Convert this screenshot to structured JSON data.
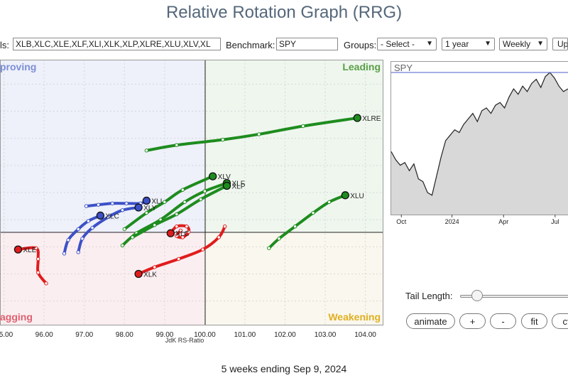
{
  "title": "Relative Rotation Graph (RRG)",
  "controls": {
    "symbols_label_partial": "ls:",
    "symbols_value": "XLB,XLC,XLE,XLF,XLI,XLK,XLP,XLRE,XLU,XLV,XL",
    "benchmark_label": "Benchmark:",
    "benchmark_value": "SPY",
    "groups_label": "Groups:",
    "groups_value": "- Select -",
    "period_value": "1 year",
    "frequency_value": "Weekly",
    "update_button_partial": "Up"
  },
  "chart_data": [
    {
      "type": "scatter",
      "name": "rrg",
      "xlabel": "JdK RS-Ratio",
      "ylabel": "",
      "xlim": [
        94.9,
        104.45
      ],
      "ylim": [
        95.1,
        104.9
      ],
      "x_ticks": [
        "95.00",
        "96.00",
        "97.00",
        "98.00",
        "99.00",
        "100.00",
        "101.00",
        "102.00",
        "103.00",
        "104.00"
      ],
      "quadrants": [
        {
          "label": "Improving",
          "label_partial": "proving",
          "color": "#7b8fd6"
        },
        {
          "label": "Leading",
          "color": "#5aa046"
        },
        {
          "label": "Weakening",
          "color": "#e0b020"
        },
        {
          "label": "Lagging",
          "label_partial": "agging",
          "color": "#e06070"
        }
      ],
      "series": [
        {
          "name": "XLRE",
          "label": "XLRE",
          "color": "#1e8c1e",
          "points": [
            [
              98.55,
              101.55
            ],
            [
              99.3,
              101.75
            ],
            [
              100.45,
              101.95
            ],
            [
              101.35,
              102.15
            ],
            [
              102.45,
              102.45
            ],
            [
              103.8,
              102.75
            ]
          ]
        },
        {
          "name": "XLV",
          "label": "XLV",
          "color": "#1e8c1e",
          "points": [
            [
              98.0,
              98.65
            ],
            [
              98.55,
              99.25
            ],
            [
              99.0,
              99.65
            ],
            [
              99.45,
              100.1
            ],
            [
              100.2,
              100.6
            ]
          ]
        },
        {
          "name": "XLF",
          "label": "XLF",
          "color": "#1e8c1e",
          "points": [
            [
              97.95,
              98.05
            ],
            [
              98.3,
              98.5
            ],
            [
              98.9,
              99.0
            ],
            [
              99.5,
              99.65
            ],
            [
              100.0,
              100.05
            ],
            [
              100.55,
              100.35
            ]
          ]
        },
        {
          "name": "XLP",
          "label": "XLP",
          "color": "#1e8c1e",
          "points": [
            [
              98.2,
              98.35
            ],
            [
              98.75,
              98.8
            ],
            [
              99.3,
              99.2
            ],
            [
              99.9,
              99.75
            ],
            [
              100.55,
              100.25
            ]
          ]
        },
        {
          "name": "XLU",
          "label": "XLU",
          "color": "#1e8c1e",
          "points": [
            [
              101.6,
              97.95
            ],
            [
              101.85,
              98.3
            ],
            [
              102.25,
              98.75
            ],
            [
              102.7,
              99.25
            ],
            [
              103.1,
              99.65
            ],
            [
              103.5,
              99.9
            ]
          ]
        },
        {
          "name": "XLI",
          "label": "XLI",
          "color": "#3c50c8",
          "points": [
            [
              97.05,
              99.5
            ],
            [
              97.35,
              99.55
            ],
            [
              97.7,
              99.6
            ],
            [
              98.05,
              99.6
            ],
            [
              98.4,
              99.6
            ],
            [
              98.55,
              99.7
            ]
          ]
        },
        {
          "name": "XLY",
          "label": "XLY",
          "color": "#3c50c8",
          "points": [
            [
              96.85,
              97.8
            ],
            [
              96.95,
              98.3
            ],
            [
              97.2,
              98.7
            ],
            [
              97.6,
              99.1
            ],
            [
              97.95,
              99.35
            ],
            [
              98.35,
              99.45
            ]
          ]
        },
        {
          "name": "XLC",
          "label": "XLC",
          "color": "#3c50c8",
          "points": [
            [
              96.5,
              97.75
            ],
            [
              96.6,
              98.25
            ],
            [
              96.85,
              98.65
            ],
            [
              97.1,
              98.95
            ],
            [
              97.4,
              99.15
            ]
          ]
        },
        {
          "name": "XLE",
          "label": "XLE",
          "color": "#e01c1c",
          "points": [
            [
              96.05,
              96.65
            ],
            [
              95.85,
              97.05
            ],
            [
              95.85,
              97.55
            ],
            [
              95.8,
              97.95
            ],
            [
              95.35,
              97.9
            ]
          ]
        },
        {
          "name": "XLK",
          "label": "XLK",
          "color": "#e01c1c",
          "points": [
            [
              100.5,
              98.75
            ],
            [
              100.35,
              98.35
            ],
            [
              99.95,
              97.9
            ],
            [
              99.35,
              97.55
            ],
            [
              98.75,
              97.25
            ],
            [
              98.35,
              97.0
            ]
          ]
        },
        {
          "name": "XLC",
          "label": "XLC",
          "color": "#e01c1c",
          "points": [
            [
              99.4,
              98.6
            ],
            [
              99.3,
              98.4
            ],
            [
              99.45,
              98.35
            ],
            [
              99.6,
              98.55
            ],
            [
              99.55,
              98.75
            ],
            [
              99.3,
              98.75
            ],
            [
              99.15,
              98.5
            ]
          ]
        }
      ]
    },
    {
      "type": "area",
      "name": "benchmark-price",
      "legend": "SPY",
      "x_ticks": [
        "Oct",
        "2024",
        "Apr",
        "Jul"
      ],
      "y_values": [
        0.42,
        0.36,
        0.32,
        0.34,
        0.28,
        0.33,
        0.22,
        0.2,
        0.12,
        0.1,
        0.24,
        0.38,
        0.5,
        0.54,
        0.58,
        0.56,
        0.62,
        0.66,
        0.7,
        0.64,
        0.72,
        0.74,
        0.7,
        0.76,
        0.78,
        0.74,
        0.82,
        0.88,
        0.84,
        0.9,
        0.86,
        0.92,
        0.95,
        0.89,
        0.97,
        1.0,
        0.96,
        0.9,
        0.86,
        0.88
      ],
      "y_max_line": 1.0
    }
  ],
  "tail": {
    "label": "Tail Length:",
    "value": 5,
    "min": 1,
    "max": 52
  },
  "buttons": {
    "animate": "animate",
    "plus": "+",
    "minus": "-",
    "fit": "fit",
    "ctr_partial": "ct"
  },
  "footer": "5 weeks ending Sep 9, 2024"
}
